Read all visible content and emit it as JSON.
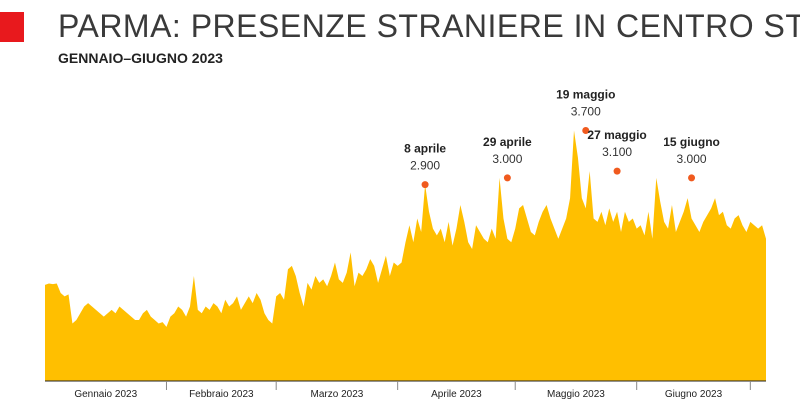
{
  "header": {
    "title": "PARMA: PRESENZE STRANIERE IN CENTRO ST.",
    "subtitle": "GENNAIO–GIUGNO 2023"
  },
  "colors": {
    "accent": "#e8191d",
    "area": "#ffbf00",
    "peak_marker": "#f05a1e",
    "axis": "#222222",
    "title": "#3a3a3a"
  },
  "chart_data": {
    "type": "area",
    "title": "PARMA: PRESENZE STRANIERE IN CENTRO ST.",
    "subtitle": "GENNAIO–GIUGNO 2023",
    "xlabel": "",
    "ylabel": "",
    "ylim": [
      0,
      4150
    ],
    "grid": false,
    "legend": "none",
    "months": [
      "Gennaio 2023",
      "Febbraio 2023",
      "Marzo 2023",
      "Aprile 2023",
      "Maggio 2023",
      "Giugno 2023"
    ],
    "x_range": [
      "2023-01-01",
      "2023-06-30"
    ],
    "series": [
      {
        "values": [
          1420,
          1440,
          1430,
          1440,
          1300,
          1250,
          1280,
          850,
          900,
          1000,
          1100,
          1150,
          1100,
          1050,
          1000,
          950,
          1000,
          1050,
          1000,
          1100,
          1050,
          1000,
          950,
          900,
          900,
          1000,
          1050,
          950,
          900,
          850,
          870,
          800,
          950,
          1000,
          1100,
          1050,
          950,
          1100,
          1550,
          1050,
          1000,
          1100,
          1050,
          1150,
          1100,
          1000,
          1200,
          1100,
          1150,
          1250,
          1050,
          1150,
          1250,
          1150,
          1300,
          1200,
          1000,
          900,
          850,
          1250,
          1300,
          1200,
          1650,
          1700,
          1550,
          1300,
          1100,
          1450,
          1350,
          1550,
          1450,
          1500,
          1400,
          1550,
          1750,
          1500,
          1450,
          1600,
          1900,
          1400,
          1600,
          1550,
          1650,
          1800,
          1700,
          1450,
          1650,
          1850,
          1550,
          1750,
          1700,
          1750,
          2050,
          2300,
          2050,
          2400,
          2200,
          2900,
          2500,
          2250,
          2150,
          2250,
          2050,
          2350,
          2000,
          2250,
          2600,
          2350,
          2050,
          1950,
          2300,
          2200,
          2100,
          2050,
          2250,
          2100,
          3000,
          2400,
          2100,
          2050,
          2250,
          2550,
          2600,
          2400,
          2200,
          2150,
          2350,
          2500,
          2600,
          2400,
          2250,
          2100,
          2250,
          2400,
          2700,
          3700,
          3300,
          2700,
          2550,
          3100,
          2400,
          2350,
          2500,
          2300,
          2550,
          2350,
          2500,
          2200,
          2500,
          2350,
          2400,
          2250,
          2300,
          2150,
          2500,
          2100,
          3000,
          2650,
          2350,
          2250,
          2600,
          2200,
          2350,
          2500,
          2700,
          2400,
          2300,
          2200,
          2350,
          2450,
          2550,
          2700,
          2450,
          2500,
          2300,
          2250,
          2400,
          2450,
          2300,
          2200,
          2350,
          2300,
          2250,
          2300,
          2100
        ]
      }
    ],
    "annotations": [
      {
        "label": "8 aprile",
        "value_label": "2.900",
        "date": "2023-04-08",
        "value": 2900
      },
      {
        "label": "29 aprile",
        "value_label": "3.000",
        "date": "2023-04-29",
        "value": 3000
      },
      {
        "label": "19 maggio",
        "value_label": "3.700",
        "date": "2023-05-19",
        "value": 3700
      },
      {
        "label": "27 maggio",
        "value_label": "3.100",
        "date": "2023-05-27",
        "value": 3100
      },
      {
        "label": "15 giugno",
        "value_label": "3.000",
        "date": "2023-06-15",
        "value": 3000
      }
    ]
  }
}
